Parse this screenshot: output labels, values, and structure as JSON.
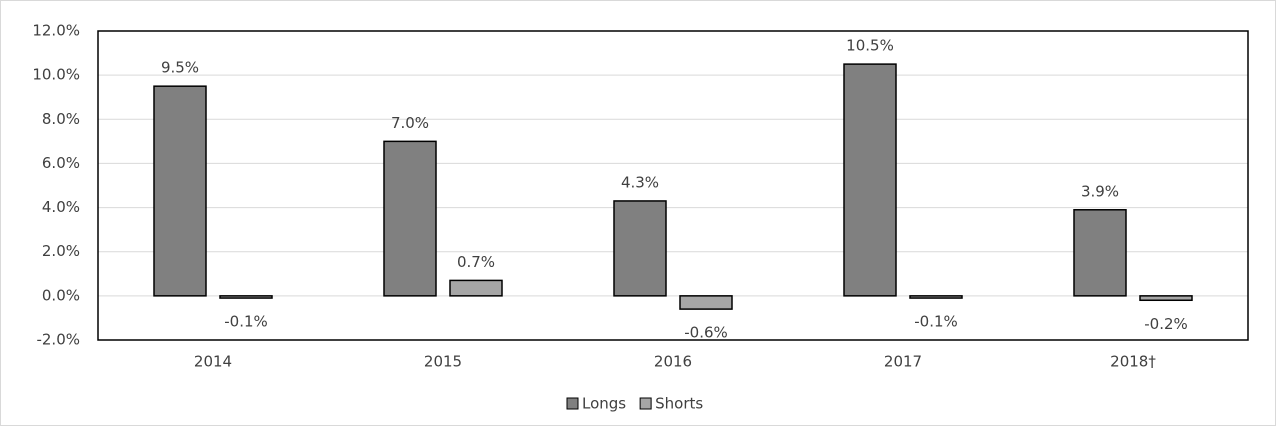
{
  "chart_data": {
    "type": "bar",
    "categories": [
      "2014",
      "2015",
      "2016",
      "2017",
      "2018†"
    ],
    "series": [
      {
        "name": "Longs",
        "color": "#808080",
        "values": [
          9.5,
          7.0,
          4.3,
          10.5,
          3.9
        ],
        "value_labels": [
          "9.5%",
          "7.0%",
          "4.3%",
          "10.5%",
          "3.9%"
        ]
      },
      {
        "name": "Shorts",
        "color": "#a6a6a6",
        "values": [
          -0.1,
          0.7,
          -0.6,
          -0.1,
          -0.2
        ],
        "value_labels": [
          "-0.1%",
          "0.7%",
          "-0.6%",
          "-0.1%",
          "-0.2%"
        ]
      }
    ],
    "ylim": [
      -2,
      12
    ],
    "yticks": [
      {
        "value": -2,
        "label": "-2.0%"
      },
      {
        "value": 0,
        "label": "0.0%"
      },
      {
        "value": 2,
        "label": "2.0%"
      },
      {
        "value": 4,
        "label": "4.0%"
      },
      {
        "value": 6,
        "label": "6.0%"
      },
      {
        "value": 8,
        "label": "8.0%"
      },
      {
        "value": 10,
        "label": "10.0%"
      },
      {
        "value": 12,
        "label": "12.0%"
      }
    ],
    "grid": true,
    "legend": "bottom"
  }
}
